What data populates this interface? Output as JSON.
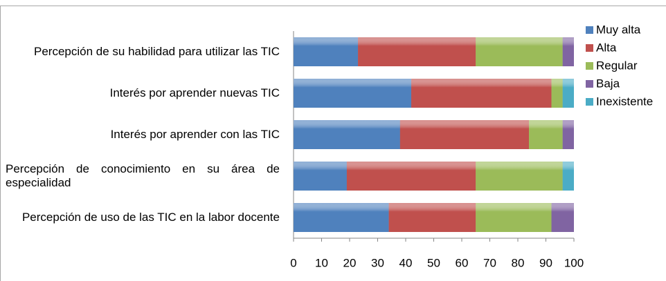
{
  "chart_data": {
    "type": "stacked-barh",
    "categories": [
      "Percepción de su habilidad para utilizar las TIC",
      "Interés por aprender nuevas TIC",
      "Interés por aprender con las TIC",
      "Percepción de conocimiento en su área de especialidad",
      "Percepción de uso de las TIC en la labor docente"
    ],
    "series": [
      {
        "name": "Muy alta",
        "color": "#4f81bd",
        "values": [
          23,
          42,
          38,
          19,
          34
        ]
      },
      {
        "name": "Alta",
        "color": "#c0504d",
        "values": [
          42,
          50,
          46,
          46,
          31
        ]
      },
      {
        "name": "Regular",
        "color": "#9bbb59",
        "values": [
          31,
          4,
          12,
          31,
          27
        ]
      },
      {
        "name": "Baja",
        "color": "#8064a2",
        "values": [
          4,
          0,
          4,
          0,
          8
        ]
      },
      {
        "name": "Inexistente",
        "color": "#4bacc6",
        "values": [
          0,
          4,
          0,
          4,
          0
        ]
      }
    ],
    "xlim": [
      0,
      100
    ],
    "xticks": [
      0,
      10,
      20,
      30,
      40,
      50,
      60,
      70,
      80,
      90,
      100
    ],
    "legend": "right"
  }
}
